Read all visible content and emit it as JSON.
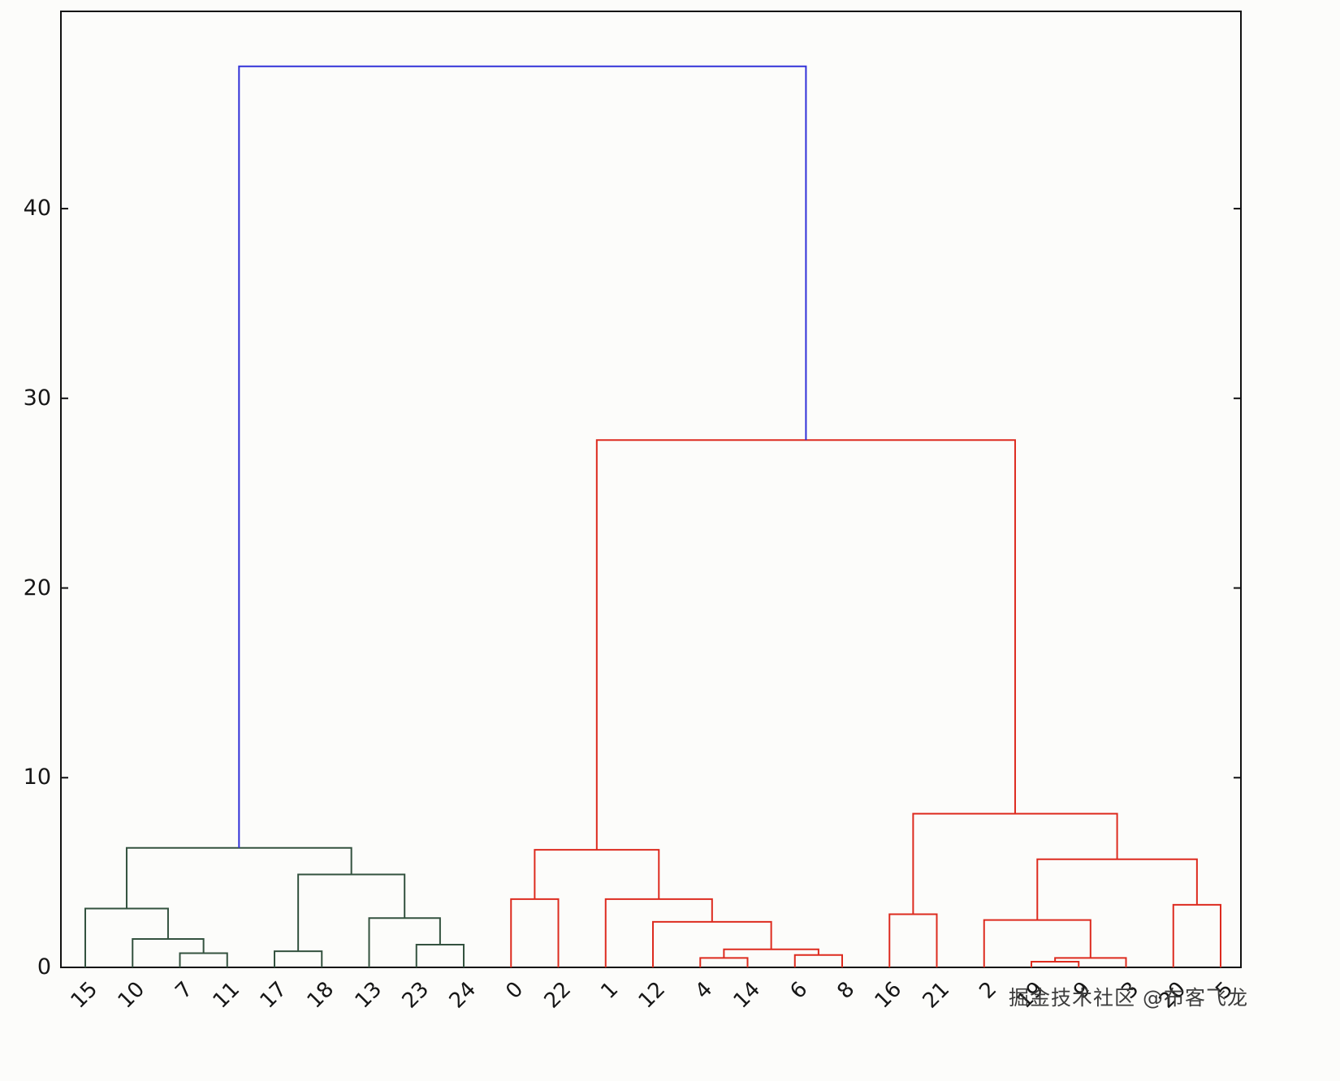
{
  "figure": {
    "watermark": "掘金技术社区 @布客飞龙"
  },
  "chart_data": {
    "type": "dendrogram",
    "title": "",
    "xlabel": "",
    "ylabel": "",
    "ylim": [
      0,
      50.4
    ],
    "yticks": [
      0,
      10,
      20,
      30,
      40
    ],
    "grid": false,
    "legend": "none",
    "leaves": [
      "15",
      "10",
      "7",
      "11",
      "17",
      "18",
      "13",
      "23",
      "24",
      "0",
      "22",
      "1",
      "12",
      "4",
      "14",
      "6",
      "8",
      "16",
      "21",
      "2",
      "19",
      "9",
      "3",
      "20",
      "5"
    ],
    "colors": {
      "g": "#33523f",
      "r": "#dd2b1f",
      "b": "#3232d8",
      "frame": "#111111"
    },
    "merges": [
      {
        "id": "L1",
        "children": [
          "7",
          "11"
        ],
        "height": 0.75,
        "color": "g"
      },
      {
        "id": "L2",
        "children": [
          "10",
          "L1"
        ],
        "height": 1.5,
        "color": "g"
      },
      {
        "id": "L3",
        "children": [
          "15",
          "L2"
        ],
        "height": 3.1,
        "color": "g"
      },
      {
        "id": "L4",
        "children": [
          "17",
          "18"
        ],
        "height": 0.85,
        "color": "g"
      },
      {
        "id": "L5",
        "children": [
          "23",
          "24"
        ],
        "height": 1.2,
        "color": "g"
      },
      {
        "id": "L6",
        "children": [
          "13",
          "L5"
        ],
        "height": 2.6,
        "color": "g"
      },
      {
        "id": "L7",
        "children": [
          "L4",
          "L6"
        ],
        "height": 4.9,
        "color": "g"
      },
      {
        "id": "L8",
        "children": [
          "L3",
          "L7"
        ],
        "height": 6.3,
        "color": "g"
      },
      {
        "id": "R1",
        "children": [
          "0",
          "22"
        ],
        "height": 3.6,
        "color": "r"
      },
      {
        "id": "R2",
        "children": [
          "4",
          "14"
        ],
        "height": 0.5,
        "color": "r"
      },
      {
        "id": "R3",
        "children": [
          "6",
          "8"
        ],
        "height": 0.65,
        "color": "r"
      },
      {
        "id": "R4",
        "children": [
          "R2",
          "R3"
        ],
        "height": 0.95,
        "color": "r"
      },
      {
        "id": "R5",
        "children": [
          "12",
          "R4"
        ],
        "height": 2.4,
        "color": "r"
      },
      {
        "id": "R6",
        "children": [
          "1",
          "R5"
        ],
        "height": 3.6,
        "color": "r"
      },
      {
        "id": "R7",
        "children": [
          "R1",
          "R6"
        ],
        "height": 6.2,
        "color": "r"
      },
      {
        "id": "S1",
        "children": [
          "16",
          "21"
        ],
        "height": 2.8,
        "color": "r"
      },
      {
        "id": "S2",
        "children": [
          "19",
          "9"
        ],
        "height": 0.3,
        "color": "r"
      },
      {
        "id": "S3",
        "children": [
          "S2",
          "3"
        ],
        "height": 0.5,
        "color": "r"
      },
      {
        "id": "S4",
        "children": [
          "2",
          "S3"
        ],
        "height": 2.5,
        "color": "r"
      },
      {
        "id": "S5",
        "children": [
          "20",
          "5"
        ],
        "height": 3.3,
        "color": "r"
      },
      {
        "id": "S6",
        "children": [
          "S4",
          "S5"
        ],
        "height": 5.7,
        "color": "r"
      },
      {
        "id": "S7",
        "children": [
          "S1",
          "S6"
        ],
        "height": 8.1,
        "color": "r"
      },
      {
        "id": "R8",
        "children": [
          "R7",
          "S7"
        ],
        "height": 27.8,
        "color": "r"
      },
      {
        "id": "ROOT",
        "children": [
          "L8",
          "R8"
        ],
        "height": 47.5,
        "color": "b"
      }
    ]
  }
}
